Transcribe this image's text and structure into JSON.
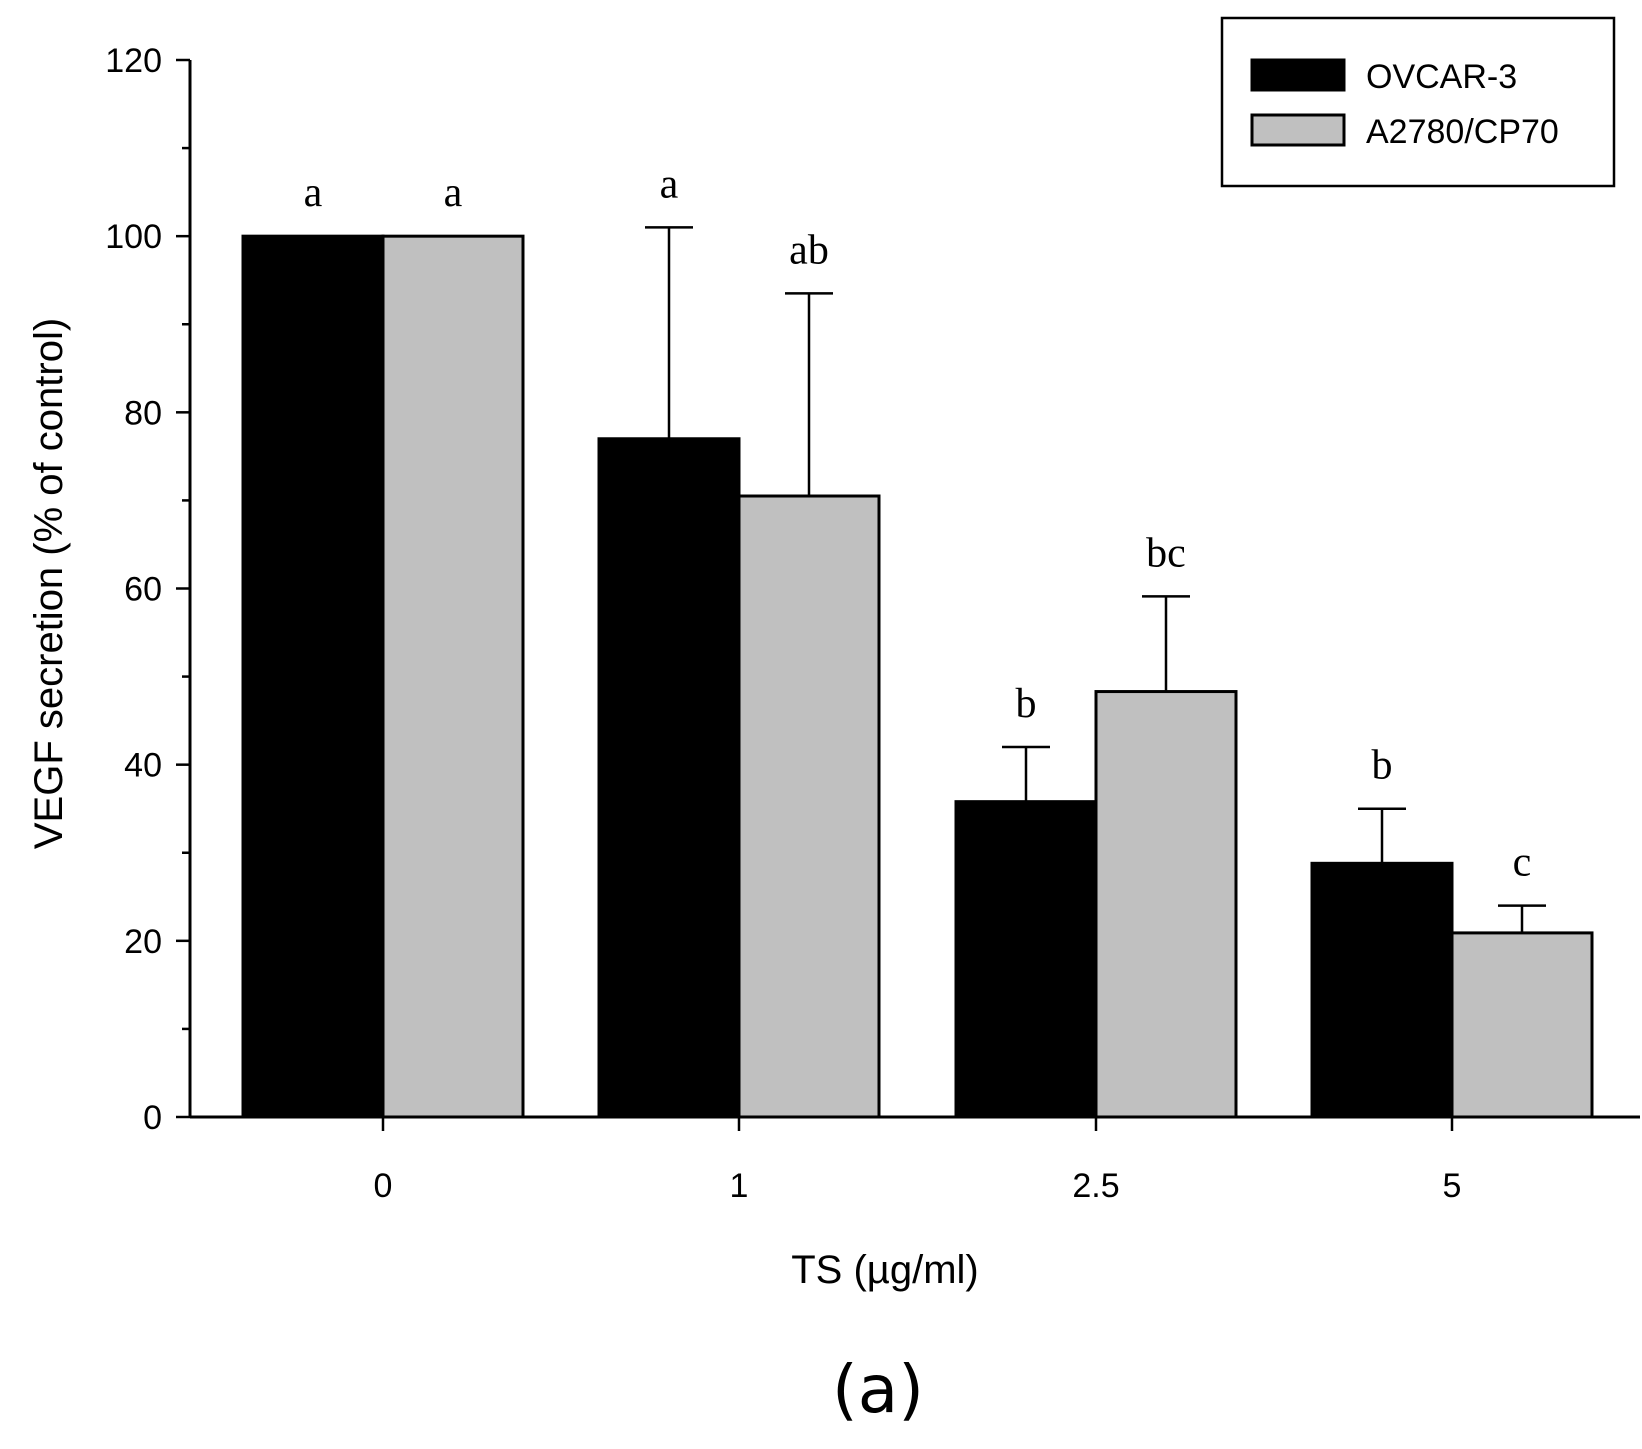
{
  "chart_data": {
    "type": "bar",
    "title": "",
    "xlabel": "TS (µg/ml)",
    "ylabel": "VEGF secretion (% of control)",
    "ylim": [
      0,
      120
    ],
    "yticks": [
      0,
      20,
      40,
      60,
      80,
      100,
      120
    ],
    "categories": [
      "0",
      "1",
      "2.5",
      "5"
    ],
    "legend_position": "top-right",
    "series": [
      {
        "name": "OVCAR-3",
        "color": "#000000",
        "values": [
          100,
          77,
          35.8,
          28.8
        ],
        "errors": [
          0,
          24,
          6.2,
          6.2
        ],
        "labels": [
          "a",
          "a",
          "b",
          "b"
        ]
      },
      {
        "name": "A2780/CP70",
        "color": "#c0c0c0",
        "values": [
          100,
          70.5,
          48.3,
          20.9
        ],
        "errors": [
          0,
          23,
          10.8,
          3.1
        ],
        "labels": [
          "a",
          "ab",
          "bc",
          "c"
        ]
      }
    ],
    "panel_label": "(a)"
  }
}
